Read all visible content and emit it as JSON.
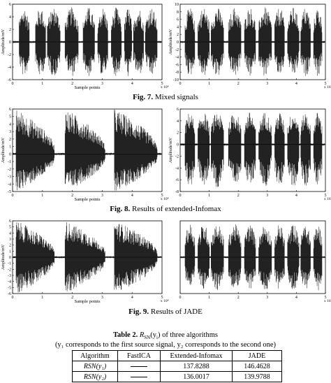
{
  "figures": [
    {
      "caption_label": "Fig. 7.",
      "caption_text": " Mixed signals",
      "panels": [
        {
          "ylabel": "Amplitude/mV",
          "xlabel": "Sample points",
          "xexp": "x 10⁴",
          "yticks": [
            "6",
            "4",
            "2",
            "0",
            "-2",
            "-4",
            "-6"
          ],
          "xticks": [
            "0",
            "1",
            "2",
            "3",
            "4",
            "5"
          ],
          "ylim": [
            -6,
            6
          ],
          "pattern": "speechA"
        },
        {
          "ylabel": "Amplitude/mV",
          "xlabel": "",
          "xexp": "x 10⁴",
          "yticks": [
            "10",
            "8",
            "6",
            "4",
            "2",
            "0",
            "-2",
            "-4",
            "-6",
            "-8",
            "-10"
          ],
          "xticks": [
            "0",
            "1",
            "2",
            "3",
            "4",
            "5"
          ],
          "ylim": [
            -10,
            10
          ],
          "pattern": "speechB"
        }
      ]
    },
    {
      "caption_label": "Fig. 8.",
      "caption_text": " Results of extended-Infomax",
      "panels": [
        {
          "ylabel": "Amplitude/mV",
          "xlabel": "Sample points",
          "xexp": "x 10⁴",
          "yticks": [
            "6",
            "5",
            "4",
            "3",
            "2",
            "1",
            "0",
            "-1",
            "-2",
            "-3",
            "-4",
            "-5"
          ],
          "xticks": [
            "0",
            "1",
            "2",
            "3",
            "4",
            "5"
          ],
          "ylim": [
            -5,
            6
          ],
          "pattern": "music"
        },
        {
          "ylabel": "Amplitude/mV",
          "xlabel": "",
          "xexp": "x 10⁴",
          "yticks": [
            "6",
            "4",
            "2",
            "0",
            "-2",
            "-4",
            "-6",
            "-8"
          ],
          "xticks": [
            "0",
            "1",
            "2",
            "3",
            "4",
            "5"
          ],
          "ylim": [
            -8,
            6
          ],
          "pattern": "speechB"
        }
      ]
    },
    {
      "caption_label": "Fig. 9.",
      "caption_text": " Results of JADE",
      "panels": [
        {
          "ylabel": "Amplitude/mV",
          "xlabel": "Sample points",
          "xexp": "x 10⁴",
          "yticks": [
            "6",
            "5",
            "4",
            "3",
            "2",
            "1",
            "0",
            "-1",
            "-2",
            "-3",
            "-4",
            "-5",
            "-6"
          ],
          "xticks": [
            "0",
            "1",
            "2",
            "3",
            "4",
            "5"
          ],
          "ylim": [
            -6,
            6
          ],
          "pattern": "music"
        },
        {
          "ylabel": "",
          "xlabel": "",
          "xexp": "x 10⁴",
          "yticks": [],
          "xticks": [
            "0",
            "1",
            "2",
            "3",
            "4",
            "5"
          ],
          "ylim": [
            -6,
            6
          ],
          "pattern": "speechB"
        }
      ]
    }
  ],
  "table": {
    "title_label": "Table 2.",
    "title_text": " of three algorithms",
    "title_math": "R",
    "title_math_sub": "SN",
    "title_math_arg": "(y",
    "title_math_arg_sub": "i",
    "title_math_arg_end": ")",
    "subtitle": "(y₁ corresponds to the first source signal, y₂ corresponds to the second one)",
    "headers": [
      "Algorithm",
      "FastICA",
      "Extended-Infomax",
      "JADE"
    ],
    "rows": [
      {
        "label": "RSN(y₁)",
        "fastica": "",
        "infomax": "137.8288",
        "jade": "146.4628"
      },
      {
        "label": "RSN(y₂)",
        "fastica": "",
        "infomax": "136.0017",
        "jade": "139.9788"
      }
    ]
  }
}
